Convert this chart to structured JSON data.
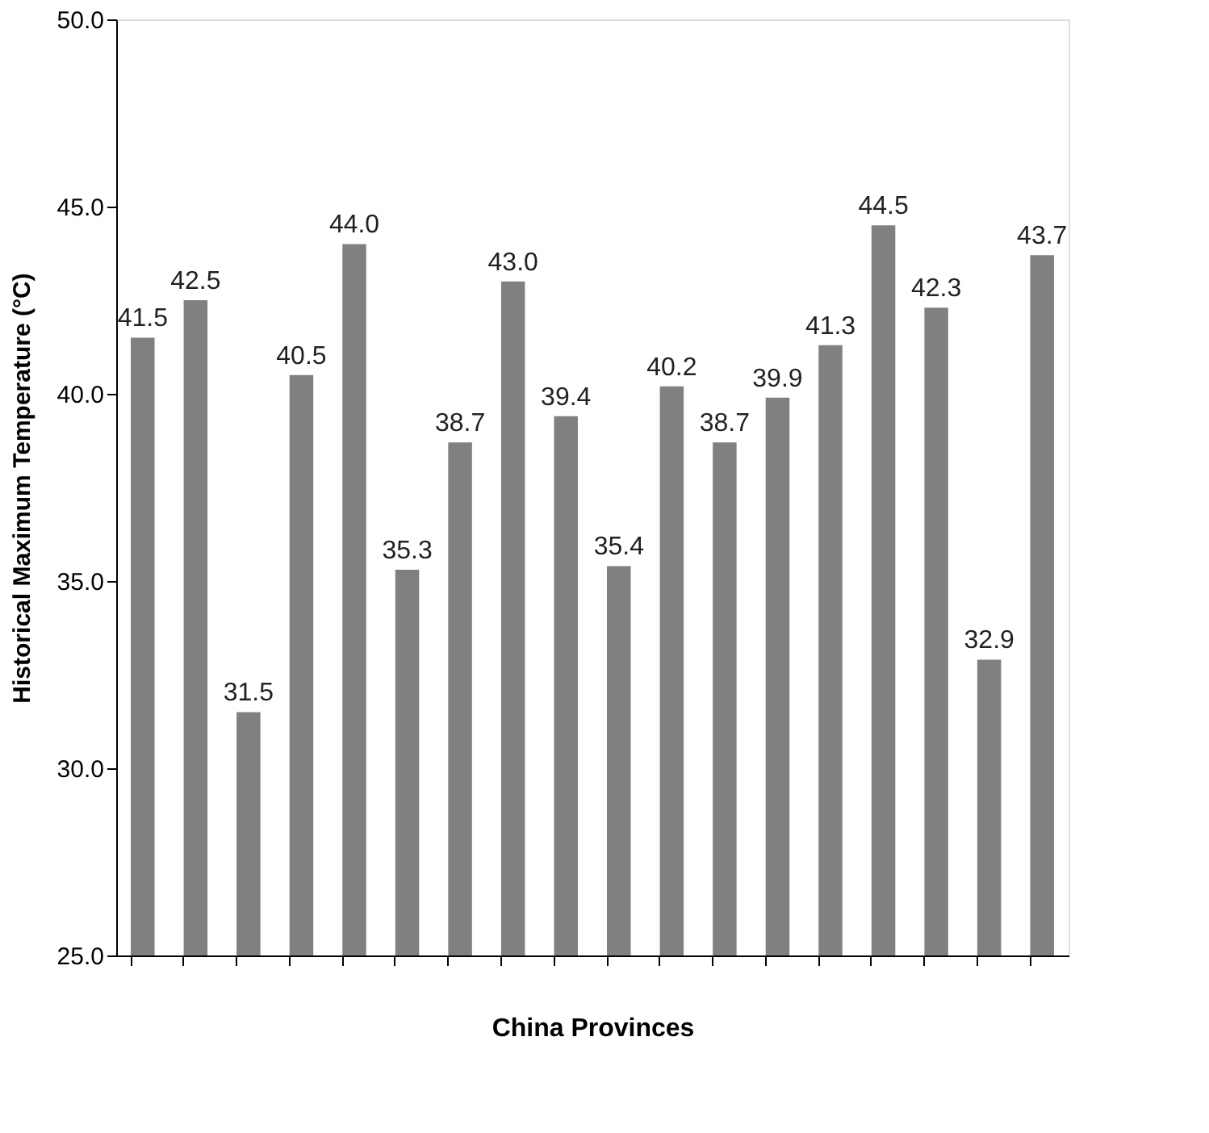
{
  "chart_data": {
    "type": "bar",
    "xlabel": "China Provinces",
    "ylabel": "Historical Maximum Temperature (°C)",
    "categories": [
      null,
      null,
      null,
      null,
      null,
      null,
      null,
      null,
      null,
      null,
      null,
      null,
      null,
      null,
      null,
      null,
      null,
      null
    ],
    "values": [
      41.5,
      42.5,
      31.5,
      40.5,
      44.0,
      35.3,
      38.7,
      43.0,
      39.4,
      35.4,
      40.2,
      38.7,
      39.9,
      41.3,
      44.5,
      42.3,
      32.9,
      43.7
    ],
    "value_labels": [
      "41.5",
      "42.5",
      "31.5",
      "40.5",
      "44.0",
      "35.3",
      "38.7",
      "43.0",
      "39.4",
      "35.4",
      "40.2",
      "38.7",
      "39.9",
      "41.3",
      "44.5",
      "42.3",
      "32.9",
      "43.7"
    ],
    "color": "#808080",
    "ylim": [
      25,
      50
    ],
    "yticks": [
      {
        "value": 25,
        "label": "25.0"
      },
      {
        "value": 30,
        "label": "30.0"
      },
      {
        "value": 35,
        "label": "35.0"
      },
      {
        "value": 40,
        "label": "40.0"
      },
      {
        "value": 45,
        "label": "45.0"
      },
      {
        "value": 50,
        "label": "50.0"
      }
    ],
    "grid": false,
    "tick_labels": "y"
  }
}
